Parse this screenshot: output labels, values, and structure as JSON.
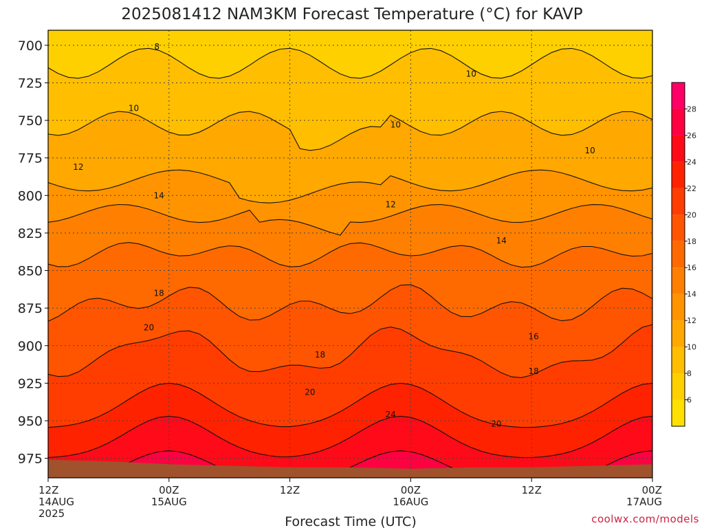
{
  "chart_data": {
    "type": "heatmap",
    "title": "2025081412 NAM3KM Forecast Temperature (°C) for KAVP",
    "xlabel": "Forecast Time (UTC)",
    "ylabel": "",
    "y_axis": {
      "reversed": true,
      "range": [
        690,
        988
      ],
      "ticks": [
        700,
        725,
        750,
        775,
        800,
        825,
        850,
        875,
        900,
        925,
        950,
        975
      ]
    },
    "x_axis": {
      "range_hours": [
        0,
        60
      ],
      "ticks": [
        {
          "hour": 0,
          "line1": "12Z",
          "line2": "14AUG",
          "line3": "2025"
        },
        {
          "hour": 12,
          "line1": "00Z",
          "line2": "15AUG",
          "line3": ""
        },
        {
          "hour": 24,
          "line1": "12Z",
          "line2": "",
          "line3": ""
        },
        {
          "hour": 36,
          "line1": "00Z",
          "line2": "16AUG",
          "line3": ""
        },
        {
          "hour": 48,
          "line1": "12Z",
          "line2": "",
          "line3": ""
        },
        {
          "hour": 60,
          "line1": "00Z",
          "line2": "17AUG",
          "line3": ""
        }
      ]
    },
    "grid": true,
    "contour_interval": 2,
    "colorbar": {
      "ticks": [
        6,
        8,
        10,
        12,
        14,
        16,
        18,
        20,
        22,
        24,
        26,
        28
      ],
      "range": [
        4,
        30
      ],
      "colors": [
        "#ffe000",
        "#ffd000",
        "#ffbe00",
        "#ffa800",
        "#ff9400",
        "#ff8000",
        "#ff6a00",
        "#ff5500",
        "#ff3d00",
        "#ff2200",
        "#ff0a18",
        "#ff0040",
        "#ff0066",
        "#ff1090",
        "#ff10b0"
      ]
    },
    "contour_labels": [
      {
        "value": 8,
        "hour": 10.8,
        "pressure": 701
      },
      {
        "value": 10,
        "hour": 8.5,
        "pressure": 742
      },
      {
        "value": 10,
        "hour": 34.5,
        "pressure": 753
      },
      {
        "value": 10,
        "hour": 42.0,
        "pressure": 719
      },
      {
        "value": 10,
        "hour": 53.8,
        "pressure": 770
      },
      {
        "value": 12,
        "hour": 3.0,
        "pressure": 781
      },
      {
        "value": 12,
        "hour": 34.0,
        "pressure": 806
      },
      {
        "value": 14,
        "hour": 11.0,
        "pressure": 800
      },
      {
        "value": 14,
        "hour": 45.0,
        "pressure": 830
      },
      {
        "value": 16,
        "hour": 48.2,
        "pressure": 894
      },
      {
        "value": 18,
        "hour": 11.0,
        "pressure": 865
      },
      {
        "value": 18,
        "hour": 27.0,
        "pressure": 906
      },
      {
        "value": 18,
        "hour": 48.2,
        "pressure": 917
      },
      {
        "value": 20,
        "hour": 10.0,
        "pressure": 888
      },
      {
        "value": 20,
        "hour": 26.0,
        "pressure": 931
      },
      {
        "value": 20,
        "hour": 44.5,
        "pressure": 952
      },
      {
        "value": 24,
        "hour": 34.0,
        "pressure": 946
      }
    ],
    "surface_pressure": [
      {
        "hour": 0,
        "pressure": 976
      },
      {
        "hour": 6,
        "pressure": 977
      },
      {
        "hour": 12,
        "pressure": 979
      },
      {
        "hour": 18,
        "pressure": 980
      },
      {
        "hour": 24,
        "pressure": 981
      },
      {
        "hour": 30,
        "pressure": 981
      },
      {
        "hour": 36,
        "pressure": 982
      },
      {
        "hour": 42,
        "pressure": 981
      },
      {
        "hour": 48,
        "pressure": 981
      },
      {
        "hour": 54,
        "pressure": 980
      },
      {
        "hour": 60,
        "pressure": 979
      }
    ],
    "surface_color": "#a0522d"
  },
  "credit": "coolwx.com/models"
}
